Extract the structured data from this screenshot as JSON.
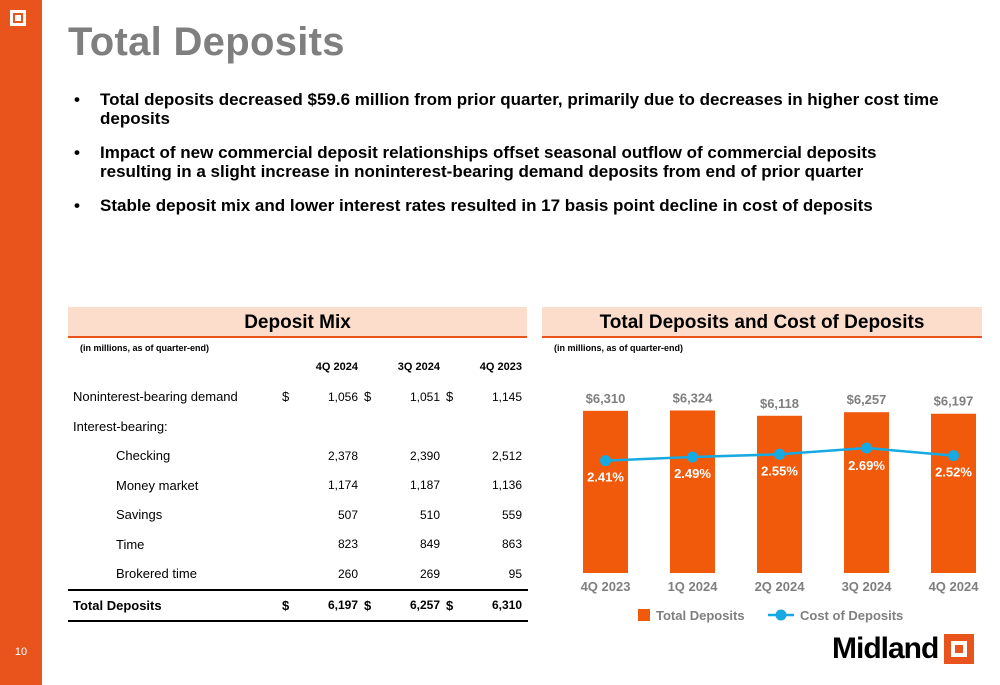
{
  "slide": {
    "title": "Total Deposits",
    "page_number": "10",
    "bullets": [
      "Total deposits decreased $59.6 million from prior quarter, primarily due to decreases in higher cost time deposits",
      "Impact of new commercial deposit relationships offset seasonal outflow of commercial deposits resulting in a slight increase in noninterest-bearing demand deposits from end of prior quarter",
      "Stable deposit mix and lower interest rates resulted in 17 basis point decline in cost of deposits"
    ],
    "logo_text": "Midland"
  },
  "deposit_mix": {
    "header": "Deposit Mix",
    "note": "(in millions, as of quarter-end)",
    "columns": [
      "4Q 2024",
      "3Q 2024",
      "4Q 2023"
    ],
    "rows": [
      {
        "label": "Noninterest-bearing demand",
        "currency": "$",
        "values": [
          "1,056",
          "1,051",
          "1,145"
        ]
      },
      {
        "label": "Interest-bearing:"
      },
      {
        "label": "Checking",
        "values": [
          "2,378",
          "2,390",
          "2,512"
        ]
      },
      {
        "label": "Money market",
        "values": [
          "1,174",
          "1,187",
          "1,136"
        ]
      },
      {
        "label": "Savings",
        "values": [
          "507",
          "510",
          "559"
        ]
      },
      {
        "label": "Time",
        "values": [
          "823",
          "849",
          "863"
        ]
      },
      {
        "label": "Brokered time",
        "values": [
          "260",
          "269",
          "95"
        ]
      }
    ],
    "total": {
      "label": "Total Deposits",
      "currency": "$",
      "values": [
        "6,197",
        "6,257",
        "6,310"
      ]
    }
  },
  "chart_panel": {
    "header": "Total Deposits and Cost of Deposits",
    "note": "(in millions, as of quarter-end)"
  },
  "chart_data": {
    "type": "bar",
    "categories": [
      "4Q 2023",
      "1Q 2024",
      "2Q 2024",
      "3Q 2024",
      "4Q 2024"
    ],
    "series": [
      {
        "name": "Total Deposits",
        "type": "bar",
        "values": [
          6310,
          6324,
          6118,
          6257,
          6197
        ],
        "labels": [
          "$6,310",
          "$6,324",
          "$6,118",
          "$6,257",
          "$6,197"
        ],
        "color": "#F05A0A"
      },
      {
        "name": "Cost of Deposits",
        "type": "line",
        "values": [
          2.41,
          2.49,
          2.55,
          2.69,
          2.52
        ],
        "labels": [
          "2.41%",
          "2.49%",
          "2.55%",
          "2.69%",
          "2.52%"
        ],
        "color": "#17A9E1"
      }
    ],
    "legend_position": "bottom",
    "grid": false
  },
  "colors": {
    "accent": "#E8541C",
    "header_fill": "#FCDDCB",
    "bar": "#F05A0A",
    "line": "#17A9E1",
    "title": "#7F7F7F"
  }
}
